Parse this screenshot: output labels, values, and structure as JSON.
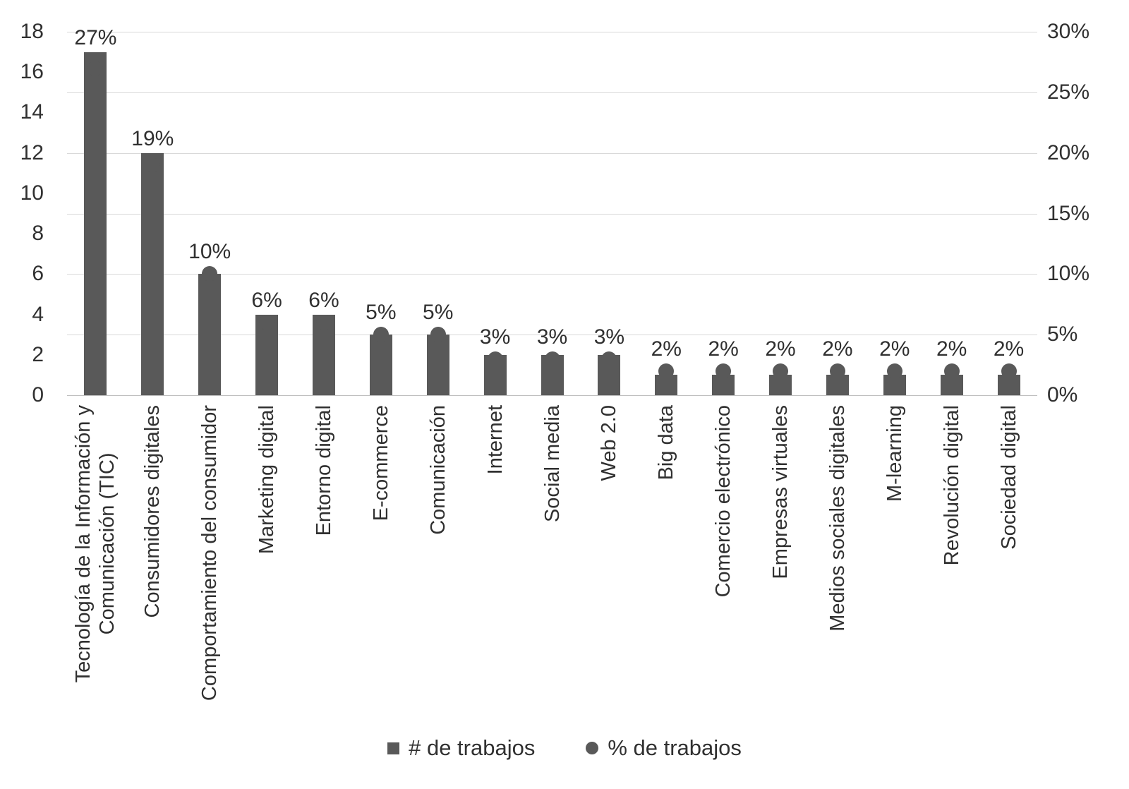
{
  "chart_data": {
    "type": "bar",
    "title": "",
    "xlabel": "",
    "ylabel": "",
    "categories": [
      "Tecnología de la Información y\nComunicación (TIC)",
      "Consumidores digitales",
      "Comportamiento del consumidor",
      "Marketing digital",
      "Entorno digital",
      "E-commerce",
      "Comunicación",
      "Internet",
      "Social media",
      "Web 2.0",
      "Big data",
      "Comercio electrónico",
      "Empresas virtuales",
      "Medios sociales digitales",
      "M-learning",
      "Revolución digital",
      "Sociedad digital"
    ],
    "series": [
      {
        "name": "# de trabajos",
        "type": "bar",
        "axis": "left",
        "values": [
          17,
          12,
          6,
          4,
          4,
          3,
          3,
          2,
          2,
          2,
          1,
          1,
          1,
          1,
          1,
          1,
          1
        ]
      },
      {
        "name": "% de trabajos",
        "type": "point",
        "axis": "right",
        "values": [
          27,
          19,
          10,
          6,
          6,
          5,
          5,
          3,
          3,
          3,
          2,
          2,
          2,
          2,
          2,
          2,
          2
        ]
      }
    ],
    "data_labels": [
      "27%",
      "19%",
      "10%",
      "6%",
      "6%",
      "5%",
      "5%",
      "3%",
      "3%",
      "3%",
      "2%",
      "2%",
      "2%",
      "2%",
      "2%",
      "2%",
      "2%"
    ],
    "left_axis": {
      "min": 0,
      "max": 18,
      "tick_values": [
        0,
        2,
        4,
        6,
        8,
        10,
        12,
        14,
        16,
        18
      ],
      "tick_labels": [
        "0",
        "2",
        "4",
        "6",
        "8",
        "10",
        "12",
        "14",
        "16",
        "18"
      ]
    },
    "right_axis": {
      "min": 0,
      "max": 30,
      "tick_values": [
        0,
        5,
        10,
        15,
        20,
        25,
        30
      ],
      "tick_labels": [
        "0%",
        "5%",
        "10%",
        "15%",
        "20%",
        "25%",
        "30%"
      ]
    },
    "grid": true,
    "legend_position": "bottom"
  },
  "legend": {
    "items": [
      {
        "label": "# de trabajos",
        "marker": "square"
      },
      {
        "label": "% de trabajos",
        "marker": "circle"
      }
    ]
  },
  "colors": {
    "bar": "#595959",
    "dot": "#595959",
    "grid": "#d9d9d9",
    "baseline": "#bfbfbf",
    "text": "#303030",
    "background": "#ffffff"
  }
}
